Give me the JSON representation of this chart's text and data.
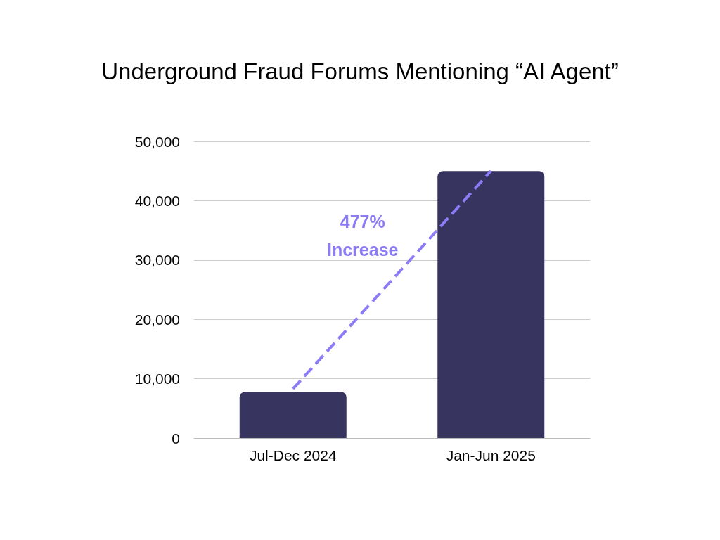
{
  "chart_data": {
    "type": "bar",
    "title": "Underground Fraud Forums Mentioning “AI Agent”",
    "categories": [
      "Jul-Dec 2024",
      "Jan-Jun 2025"
    ],
    "series": [
      {
        "color": "#383460",
        "values": [
          7800,
          45000
        ]
      },
      {
        "type": "line",
        "color": "#8b7cf6",
        "values": [
          8300,
          45000
        ],
        "line_style": "dashed",
        "marker": "none"
      }
    ],
    "ylim": [
      0,
      50000
    ],
    "yticks": [
      0,
      {
        "value": 10000,
        "label": "10,000"
      },
      {
        "value": 20000,
        "label": "20,000"
      },
      {
        "value": 30000,
        "label": "30,000"
      },
      {
        "value": 40000,
        "label": "40,000"
      },
      {
        "value": 50000,
        "label": "50,000"
      }
    ],
    "grid": "y",
    "annotations": [
      "477%\nIncrease"
    ]
  }
}
